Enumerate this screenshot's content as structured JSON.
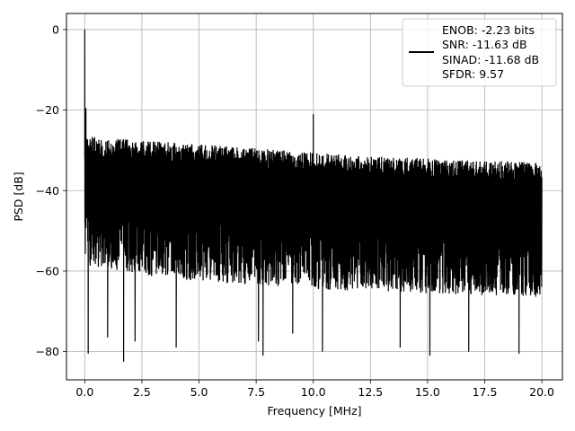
{
  "chart_data": {
    "type": "line",
    "title": "",
    "xlabel": "Frequency [MHz]",
    "ylabel": "PSD [dB]",
    "xlim": [
      -0.8,
      20.9
    ],
    "ylim": [
      -87,
      4
    ],
    "grid": true,
    "x_ticks": [
      0.0,
      2.5,
      5.0,
      7.5,
      10.0,
      12.5,
      15.0,
      17.5,
      20.0
    ],
    "x_tick_labels": [
      "0.0",
      "2.5",
      "5.0",
      "7.5",
      "10.0",
      "12.5",
      "15.0",
      "17.5",
      "20.0"
    ],
    "y_ticks": [
      0,
      -20,
      -40,
      -60,
      -80
    ],
    "y_tick_labels": [
      "0",
      "−20",
      "−40",
      "−60",
      "−80"
    ],
    "line_color": "#000000",
    "legend": {
      "placement": "top-right",
      "lines": [
        "ENOB: -2.23 bits",
        "SNR: -11.63 dB",
        "SINAD: -11.68 dB",
        "SFDR: 9.57"
      ]
    },
    "series": [
      {
        "x_start": 0.0,
        "x_end": 20.0,
        "peaks": [
          {
            "x": 0.0,
            "y": 0.0
          },
          {
            "x": 0.05,
            "y": -19.5
          },
          {
            "x": 10.0,
            "y": -21.0
          }
        ],
        "upper_envelope": [
          [
            0.0,
            -26.5
          ],
          [
            2.5,
            -27.5
          ],
          [
            5.0,
            -28.5
          ],
          [
            7.5,
            -29.5
          ],
          [
            10.0,
            -30.5
          ],
          [
            12.5,
            -31.5
          ],
          [
            15.0,
            -32.0
          ],
          [
            17.5,
            -32.5
          ],
          [
            20.0,
            -33.0
          ]
        ],
        "lower_envelope": [
          [
            0.0,
            -58.5
          ],
          [
            2.5,
            -61.0
          ],
          [
            5.0,
            -62.5
          ],
          [
            7.5,
            -63.5
          ],
          [
            10.0,
            -64.5
          ],
          [
            12.5,
            -65.0
          ],
          [
            15.0,
            -65.5
          ],
          [
            17.5,
            -66.0
          ],
          [
            20.0,
            -66.5
          ]
        ],
        "dips": [
          {
            "x": 0.15,
            "y": -80.5
          },
          {
            "x": 1.0,
            "y": -76.5
          },
          {
            "x": 1.7,
            "y": -82.5
          },
          {
            "x": 2.2,
            "y": -77.5
          },
          {
            "x": 4.0,
            "y": -79.0
          },
          {
            "x": 7.6,
            "y": -77.5
          },
          {
            "x": 7.8,
            "y": -81.0
          },
          {
            "x": 9.1,
            "y": -75.5
          },
          {
            "x": 10.4,
            "y": -80.0
          },
          {
            "x": 13.8,
            "y": -79.0
          },
          {
            "x": 15.1,
            "y": -81.0
          },
          {
            "x": 16.8,
            "y": -80.0
          },
          {
            "x": 19.0,
            "y": -80.5
          }
        ]
      }
    ]
  }
}
